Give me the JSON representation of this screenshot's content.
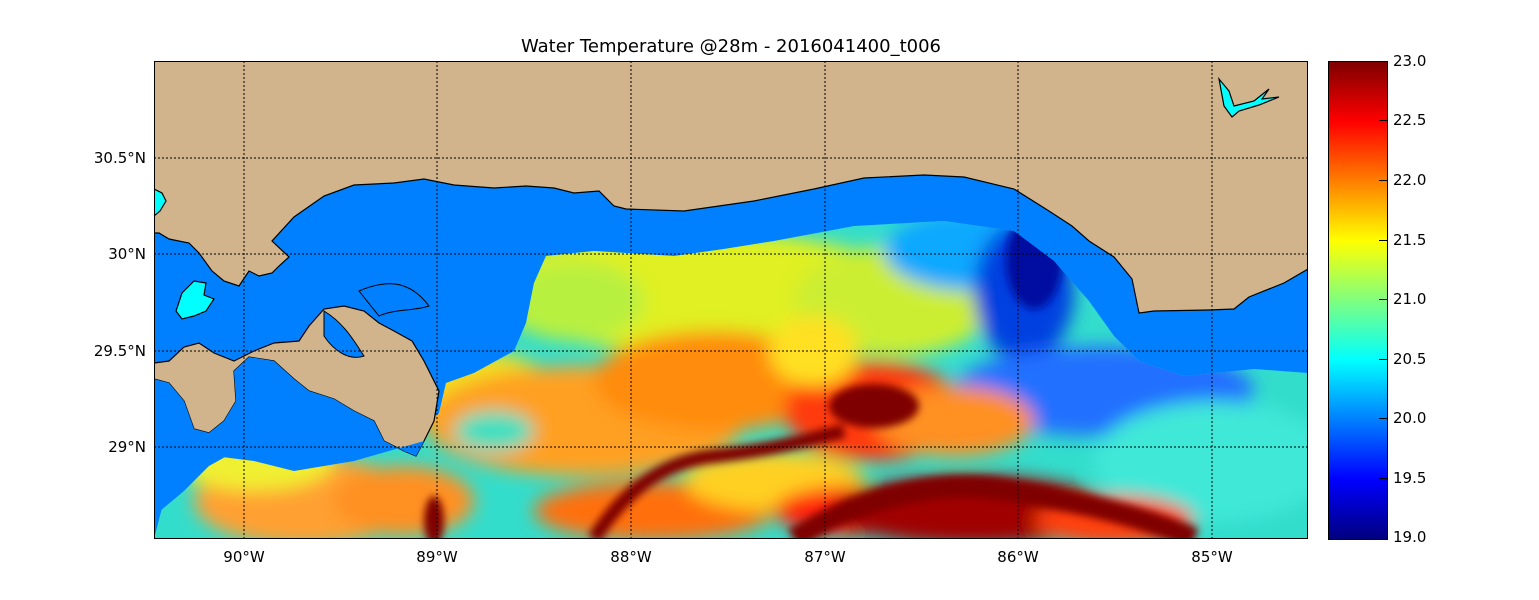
{
  "title": "Water Temperature @28m - 2016041400_t006",
  "map": {
    "lon_range": [
      -90.5,
      -84.5
    ],
    "lat_range": [
      28.55,
      31.0
    ],
    "grid": true,
    "land_color": "#d2b48c",
    "ocean_color": "#0080ff",
    "lake_color": "#00ffff",
    "y_ticks": [
      "30.5°N",
      "30°N",
      "29.5°N",
      "29°N"
    ],
    "x_ticks": [
      "90°W",
      "89°W",
      "88°W",
      "87°W",
      "86°W",
      "85°W"
    ]
  },
  "colorbar": {
    "colormap": "jet",
    "range": [
      19.0,
      23.0
    ],
    "ticks": [
      "23.0",
      "22.5",
      "22.0",
      "21.5",
      "21.0",
      "20.5",
      "20.0",
      "19.5",
      "19.0"
    ]
  }
}
